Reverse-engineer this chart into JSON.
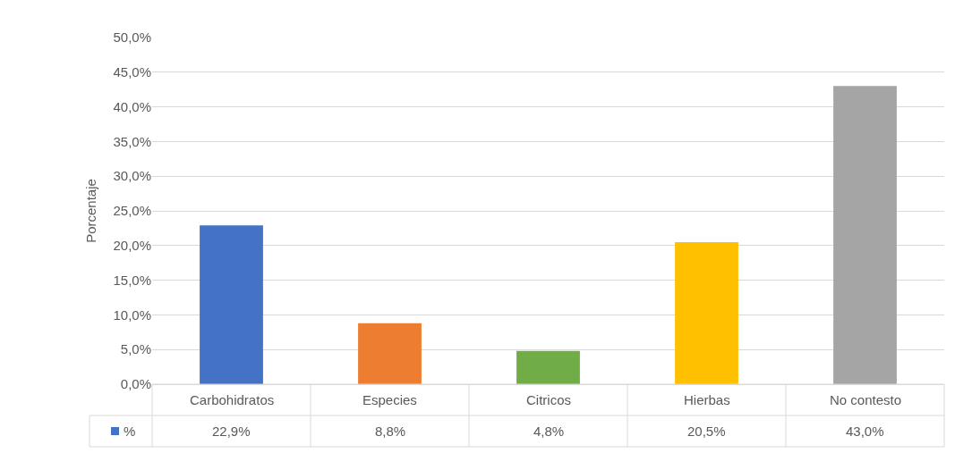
{
  "chart_data": {
    "type": "bar",
    "ylabel": "Porcentaje",
    "categories": [
      "Carbohidratos",
      "Especies",
      "Citricos",
      "Hierbas",
      "No contesto"
    ],
    "series": [
      {
        "name": "%",
        "color": "#4472c4",
        "colors": [
          "#4472c4",
          "#ed7d31",
          "#70ad47",
          "#ffc000",
          "#a5a5a5"
        ],
        "values": [
          22.9,
          8.8,
          4.8,
          20.5,
          43.0
        ],
        "value_labels": [
          "22,9%",
          "8,8%",
          "4,8%",
          "20,5%",
          "43,0%"
        ]
      }
    ],
    "ylim": [
      0,
      50
    ],
    "yticks": [
      {
        "value": 0,
        "label": "0,0%"
      },
      {
        "value": 5,
        "label": "5,0%"
      },
      {
        "value": 10,
        "label": "10,0%"
      },
      {
        "value": 15,
        "label": "15,0%"
      },
      {
        "value": 20,
        "label": "20,0%"
      },
      {
        "value": 25,
        "label": "25,0%"
      },
      {
        "value": 30,
        "label": "30,0%"
      },
      {
        "value": 35,
        "label": "35,0%"
      },
      {
        "value": 40,
        "label": "40,0%"
      },
      {
        "value": 45,
        "label": "45,0%"
      },
      {
        "value": 50,
        "label": "50,0%"
      }
    ],
    "grid": "y",
    "legend": "bottom left"
  }
}
